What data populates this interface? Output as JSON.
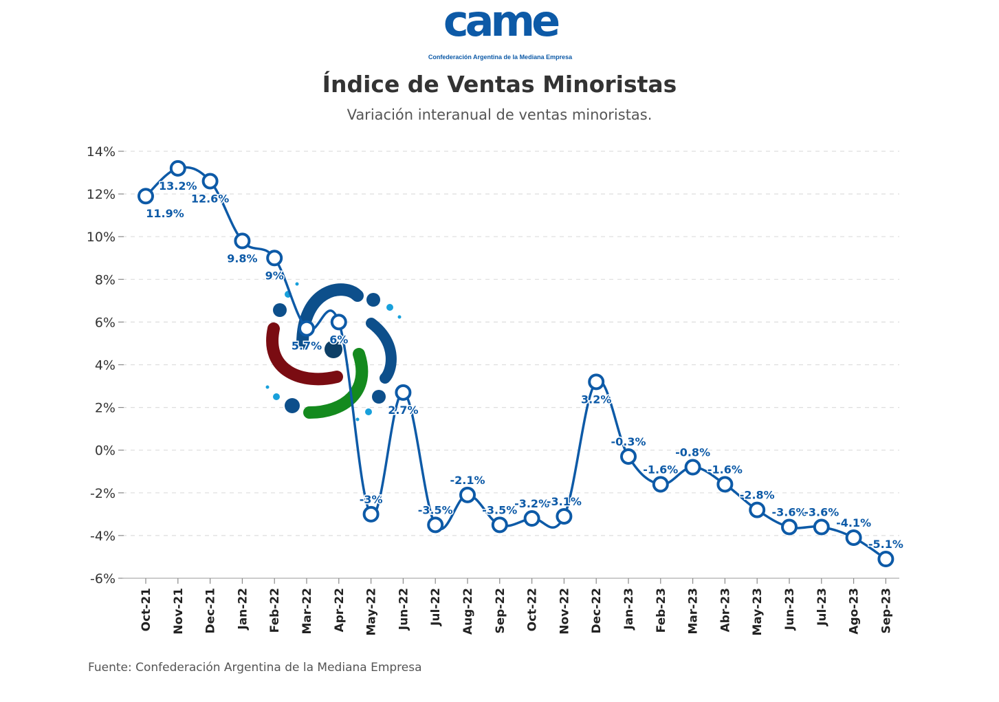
{
  "logo": {
    "word": "came",
    "tagline": "Confederación Argentina de la Mediana Empresa"
  },
  "colors": {
    "line": "#0d5aa7",
    "label": "#0d5aa7",
    "grid": "#dddddd",
    "watermark": [
      "#0d4f8b",
      "#7a0c12",
      "#148a1e",
      "#18a0db"
    ]
  },
  "chart_data": {
    "type": "line",
    "title": "Índice de Ventas Minoristas",
    "subtitle": "Variación interanual de ventas minoristas.",
    "source": "Fuente: Confederación Argentina de la Mediana Empresa",
    "categories": [
      "Oct-21",
      "Nov-21",
      "Dec-21",
      "Jan-22",
      "Feb-22",
      "Mar-22",
      "Apr-22",
      "May-22",
      "Jun-22",
      "Jul-22",
      "Aug-22",
      "Sep-22",
      "Oct-22",
      "Nov-22",
      "Dec-22",
      "Jan-23",
      "Feb-23",
      "Mar-23",
      "Abr-23",
      "May-23",
      "Jun-23",
      "Jul-23",
      "Ago-23",
      "Sep-23"
    ],
    "values": [
      11.9,
      13.2,
      12.6,
      9.8,
      9.0,
      5.7,
      6.0,
      -3.0,
      2.7,
      -3.5,
      -2.1,
      -3.5,
      -3.2,
      -3.1,
      3.2,
      -0.3,
      -1.6,
      -0.8,
      -1.6,
      -2.8,
      -3.6,
      -3.6,
      -4.1,
      -5.1
    ],
    "data_labels": [
      "11.9%",
      "13.2%",
      "12.6%",
      "9.8%",
      "9%",
      "5.7%",
      "6%",
      "-3%",
      "2.7%",
      "-3.5%",
      "-2.1%",
      "-3.5%",
      "-3.2%",
      "-3.1%",
      "3.2%",
      "-0.3%",
      "-1.6%",
      "-0.8%",
      "-1.6%",
      "-2.8%",
      "-3.6%",
      "-3.6%",
      "-4.1%",
      "-5.1%"
    ],
    "y_ticks": [
      -6,
      -4,
      -2,
      0,
      2,
      4,
      6,
      8,
      10,
      12,
      14
    ],
    "y_tick_labels": [
      "-6%",
      "-4%",
      "-2%",
      "0%",
      "2%",
      "4%",
      "6%",
      "8%",
      "10%",
      "12%",
      "14%"
    ],
    "ylim": [
      -6,
      14
    ],
    "xlabel": "",
    "ylabel": "",
    "grid": "horizontal dashed",
    "legend": "none"
  }
}
